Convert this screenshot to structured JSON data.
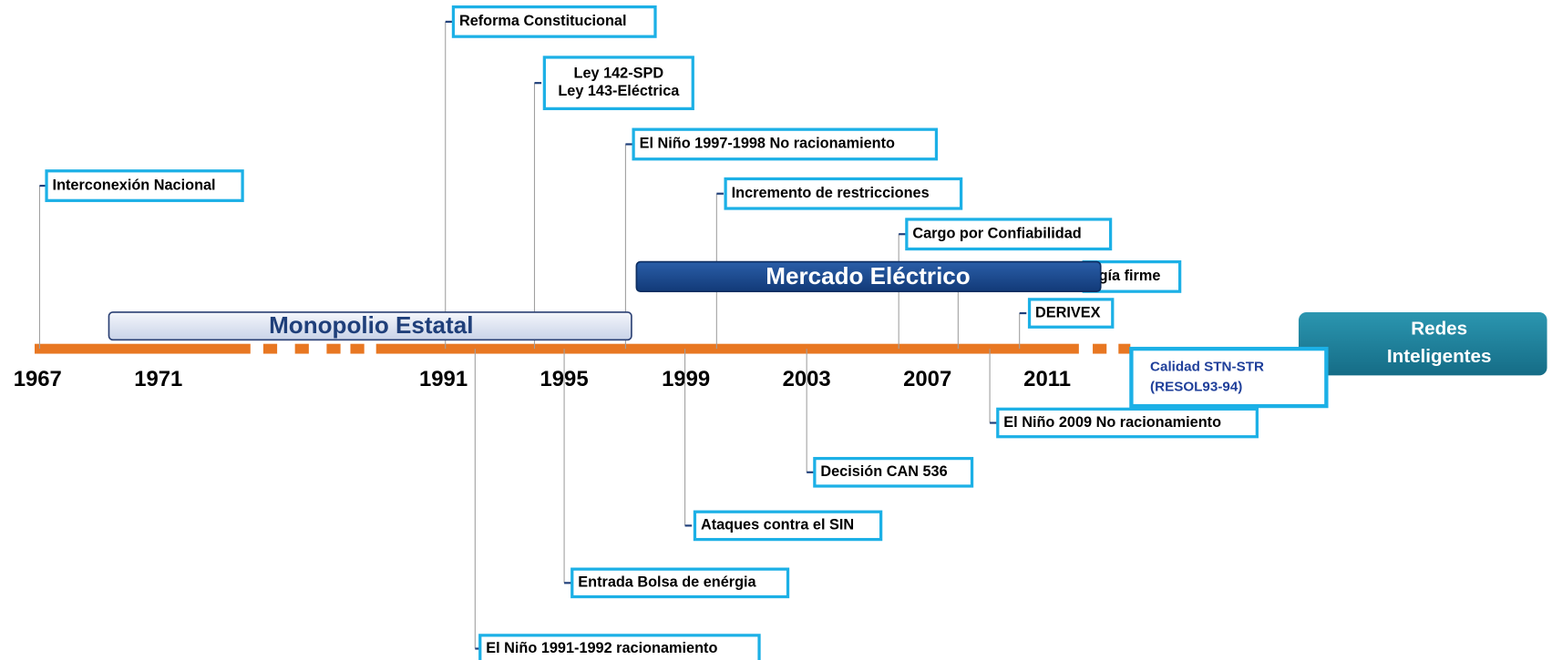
{
  "timeline": {
    "years": [
      "1967",
      "1971",
      "1991",
      "1995",
      "1999",
      "2003",
      "2007",
      "2011"
    ],
    "periods": [
      {
        "label": "Monopolio Estatal"
      },
      {
        "label": "Mercado Eléctrico"
      },
      {
        "label": "Redes Inteligentes"
      }
    ],
    "events_above": [
      {
        "lines": [
          "Interconexión Nacional"
        ]
      },
      {
        "lines": [
          "Reforma Constitucional"
        ]
      },
      {
        "lines": [
          "Ley 142-SPD",
          "Ley 143-Eléctrica"
        ]
      },
      {
        "lines": [
          "El Niño 1997-1998  No racionamiento"
        ]
      },
      {
        "lines": [
          "Incremento de restricciones"
        ]
      },
      {
        "lines": [
          "Cargo por Confiabilidad"
        ]
      },
      {
        "lines": [
          "gía firme"
        ]
      },
      {
        "lines": [
          "DERIVEX"
        ]
      }
    ],
    "events_below": [
      {
        "lines": [
          "El Niño 1991-1992  racionamiento"
        ]
      },
      {
        "lines": [
          "Entrada Bolsa de enérgia"
        ]
      },
      {
        "lines": [
          "Ataques contra el SIN"
        ]
      },
      {
        "lines": [
          "Decisión CAN  536"
        ]
      },
      {
        "lines": [
          "El Niño 2009 No racionamiento"
        ]
      }
    ],
    "note": {
      "lines": [
        "Calidad STN-STR",
        "(RESOL93-94)"
      ]
    }
  }
}
